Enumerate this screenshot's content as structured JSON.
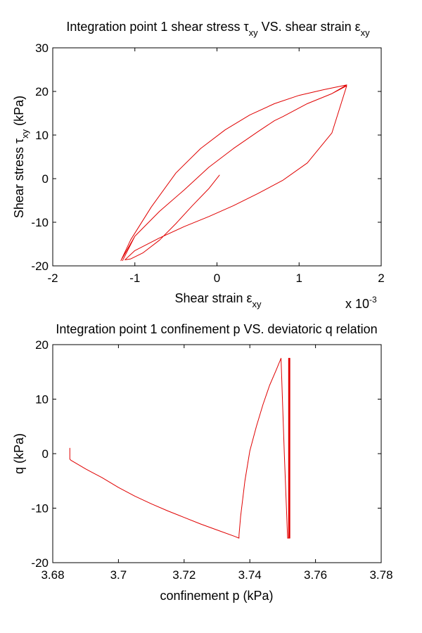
{
  "colors": {
    "series": "#e00000",
    "axis": "#000000",
    "background": "#ffffff"
  },
  "chart_data": [
    {
      "type": "line",
      "title": {
        "prefix": "Integration point 1 shear stress ",
        "sym1": "τ",
        "sub1": "xy",
        "middle": " VS. shear strain ",
        "sym2": "ε",
        "sub2": "xy"
      },
      "xlabel": {
        "text": "Shear strain ",
        "sym": "ε",
        "sub": "xy"
      },
      "ylabel": {
        "text": "Shear stress ",
        "sym": "τ",
        "sub": "xy",
        "suffix": " (kPa)"
      },
      "x_multiplier": {
        "base": "x 10",
        "exp": "-3"
      },
      "xlim": [
        -2,
        2
      ],
      "ylim": [
        -20,
        30
      ],
      "xticks": [
        "-2",
        "-1",
        "0",
        "1",
        "2"
      ],
      "yticks": [
        "-20",
        "-10",
        "0",
        "10",
        "20",
        "30"
      ],
      "grid": false,
      "series": [
        {
          "x": [
            0.03,
            -0.1,
            -0.3,
            -0.5,
            -0.7,
            -0.9,
            -1.05,
            -1.12,
            -1.0,
            -0.7,
            -0.4,
            -0.1,
            0.2,
            0.5,
            0.8,
            1.1,
            1.4,
            1.58,
            1.4,
            1.1,
            0.8,
            0.7,
            0.5,
            0.2,
            -0.1,
            -0.4,
            -0.7,
            -1.0,
            -1.17,
            -1.05,
            -0.8,
            -0.5,
            -0.2,
            0.1,
            0.4,
            0.7,
            1.0,
            1.3,
            1.58,
            1.4,
            1.1,
            0.8,
            0.7,
            0.5,
            0.2,
            -0.1,
            -0.4,
            -0.7,
            -1.0,
            -1.15
          ],
          "y": [
            0.8,
            -2.3,
            -6.2,
            -10.3,
            -14.1,
            -17.0,
            -18.4,
            -18.6,
            -16.5,
            -13.6,
            -11.0,
            -8.7,
            -6.2,
            -3.4,
            -0.4,
            3.6,
            10.5,
            21.3,
            19.5,
            17.2,
            14.2,
            13.3,
            10.8,
            6.9,
            2.6,
            -2.6,
            -7.5,
            -13.2,
            -18.8,
            -14.0,
            -6.5,
            1.3,
            6.9,
            11.2,
            14.6,
            17.2,
            19.1,
            20.4,
            21.5,
            19.5,
            17.2,
            14.2,
            13.3,
            10.8,
            6.9,
            2.6,
            -2.6,
            -7.5,
            -13.2,
            -18.8
          ]
        }
      ]
    },
    {
      "type": "line",
      "title": {
        "text": "Integration point 1 confinement p VS. deviatoric q relation"
      },
      "xlabel": {
        "text": "confinement p (kPa)"
      },
      "ylabel": {
        "text": "q (kPa)"
      },
      "xlim": [
        3.68,
        3.78
      ],
      "ylim": [
        -20,
        20
      ],
      "xticks": [
        "3.68",
        "3.7",
        "3.72",
        "3.74",
        "3.76",
        "3.78"
      ],
      "yticks": [
        "-20",
        "-10",
        "0",
        "10",
        "20"
      ],
      "grid": false,
      "series": [
        {
          "x": [
            3.6852,
            3.6852,
            3.6855,
            3.69,
            3.695,
            3.7,
            3.705,
            3.71,
            3.715,
            3.72,
            3.725,
            3.73,
            3.7355,
            3.7367,
            3.7367,
            3.7372,
            3.7385,
            3.74,
            3.742,
            3.744,
            3.746,
            3.748,
            3.7495,
            3.7505,
            3.7515,
            3.7518,
            3.7518,
            3.752,
            3.752,
            3.7522,
            3.7522,
            3.7521,
            3.7521
          ],
          "y": [
            1.0,
            -1.0,
            -1.2,
            -2.8,
            -4.4,
            -6.2,
            -7.8,
            -9.2,
            -10.5,
            -11.7,
            -12.9,
            -14.0,
            -15.2,
            -15.5,
            -15.0,
            -11.5,
            -5.0,
            0.5,
            5.0,
            9.0,
            12.5,
            15.3,
            17.5,
            0.0,
            -15.5,
            -15.5,
            17.5,
            17.5,
            -15.5,
            -15.5,
            17.5,
            17.5,
            -15.0
          ]
        }
      ]
    }
  ]
}
